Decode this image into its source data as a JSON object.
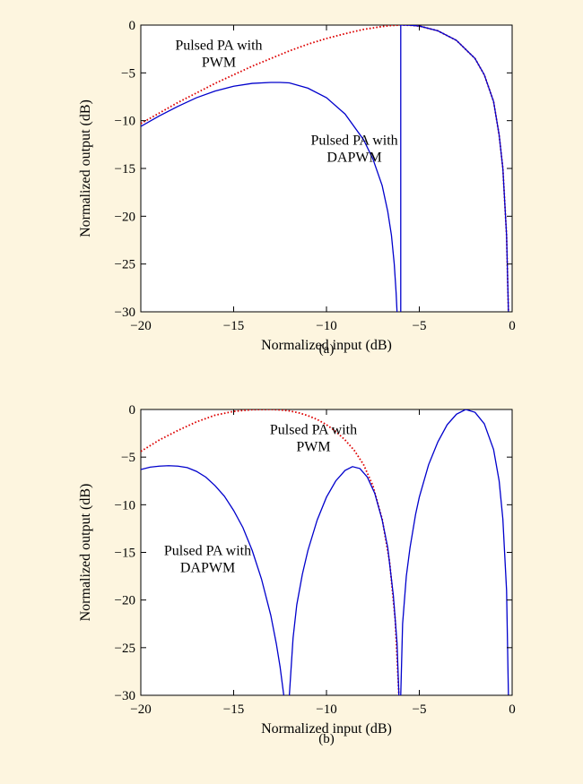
{
  "chart_data": [
    {
      "type": "line",
      "panel_label": "(a)",
      "xlabel": "Normalized input (dB)",
      "ylabel": "Normalized output (dB)",
      "xlim": [
        -20,
        0
      ],
      "ylim": [
        -30,
        0
      ],
      "xticks": [
        -20,
        -15,
        -10,
        -5,
        0
      ],
      "yticks": [
        0,
        -5,
        -10,
        -15,
        -20,
        -25,
        -30
      ],
      "xtick_labels": [
        "−20",
        "−15",
        "−10",
        "−5",
        "0"
      ],
      "ytick_labels": [
        "0",
        "−5",
        "−10",
        "−15",
        "−20",
        "−25",
        "−30"
      ],
      "grid": false,
      "series": [
        {
          "name": "Pulsed PA with PWM",
          "color": "#dd0000",
          "style": "dotted",
          "x": [
            -20,
            -19,
            -18,
            -17,
            -16,
            -15,
            -14,
            -13,
            -12,
            -11,
            -10,
            -9,
            -8,
            -7,
            -6.5,
            -6,
            -5.5,
            -5,
            -4,
            -3,
            -2,
            -1.5,
            -1,
            -0.7,
            -0.5,
            -0.3,
            -0.2
          ],
          "y": [
            -10.3,
            -9.2,
            -8.1,
            -7.1,
            -6.1,
            -5.2,
            -4.3,
            -3.5,
            -2.7,
            -2.0,
            -1.4,
            -0.9,
            -0.45,
            -0.15,
            -0.04,
            0,
            -0.02,
            -0.1,
            -0.6,
            -1.6,
            -3.5,
            -5.2,
            -8.0,
            -11.5,
            -15.0,
            -22.0,
            -30.0
          ]
        },
        {
          "name": "Pulsed PA with DAPWM",
          "color": "#0000cc",
          "style": "solid",
          "segments": [
            {
              "x": [
                -20,
                -19,
                -18,
                -17,
                -16,
                -15,
                -14,
                -13,
                -12.5,
                -12,
                -11,
                -10,
                -9,
                -8,
                -7.5,
                -7,
                -6.7,
                -6.5,
                -6.35,
                -6.25,
                -6.2
              ],
              "y": [
                -10.6,
                -9.5,
                -8.5,
                -7.6,
                -6.9,
                -6.4,
                -6.1,
                -6.0,
                -6.0,
                -6.05,
                -6.6,
                -7.6,
                -9.3,
                -12.0,
                -14.0,
                -16.8,
                -19.5,
                -22.0,
                -25.0,
                -28.0,
                -30.0
              ]
            },
            {
              "x": [
                -6.0,
                -6.0
              ],
              "y": [
                -30.0,
                0
              ]
            },
            {
              "x": [
                -6.0,
                -5.5,
                -5,
                -4,
                -3,
                -2,
                -1.5,
                -1,
                -0.7,
                -0.5,
                -0.3,
                -0.2
              ],
              "y": [
                0,
                -0.02,
                -0.1,
                -0.6,
                -1.6,
                -3.5,
                -5.2,
                -8.0,
                -11.5,
                -15.0,
                -22.0,
                -30.0
              ]
            }
          ]
        }
      ],
      "annotations": [
        {
          "lines": [
            "Pulsed PA with",
            "PWM"
          ],
          "x": -15.8,
          "y": -2.6,
          "anchor": "middle"
        },
        {
          "lines": [
            "Pulsed PA with",
            "DAPWM"
          ],
          "x": -8.5,
          "y": -12.5,
          "anchor": "middle"
        }
      ]
    },
    {
      "type": "line",
      "panel_label": "(b)",
      "xlabel": "Normalized input (dB)",
      "ylabel": "Normalized output (dB)",
      "xlim": [
        -20,
        0
      ],
      "ylim": [
        -30,
        0
      ],
      "xticks": [
        -20,
        -15,
        -10,
        -5,
        0
      ],
      "yticks": [
        0,
        -5,
        -10,
        -15,
        -20,
        -25,
        -30
      ],
      "xtick_labels": [
        "−20",
        "−15",
        "−10",
        "−5",
        "0"
      ],
      "ytick_labels": [
        "0",
        "−5",
        "−10",
        "−15",
        "−20",
        "−25",
        "−30"
      ],
      "grid": false,
      "series": [
        {
          "name": "Pulsed PA with PWM",
          "color": "#dd0000",
          "style": "dotted",
          "x": [
            -20,
            -19,
            -18,
            -17,
            -16,
            -15,
            -14,
            -13,
            -12.5,
            -12,
            -11.5,
            -11,
            -10.5,
            -10,
            -9.5,
            -9,
            -8.5,
            -8,
            -7.5,
            -7,
            -6.6,
            -6.3,
            -6.1
          ],
          "y": [
            -4.4,
            -3.2,
            -2.2,
            -1.3,
            -0.6,
            -0.2,
            -0.02,
            0,
            -0.04,
            -0.15,
            -0.35,
            -0.65,
            -1.05,
            -1.6,
            -2.3,
            -3.2,
            -4.3,
            -5.8,
            -8.0,
            -11.5,
            -16.0,
            -22.0,
            -30.0
          ]
        },
        {
          "name": "Pulsed PA with DAPWM",
          "color": "#0000cc",
          "style": "solid",
          "segments": [
            {
              "x": [
                -20,
                -19.5,
                -19,
                -18.5,
                -18,
                -17.5,
                -17,
                -16.5,
                -16,
                -15.5,
                -15,
                -14.5,
                -14,
                -13.5,
                -13,
                -12.7,
                -12.5,
                -12.3
              ],
              "y": [
                -6.3,
                -6.05,
                -5.95,
                -5.9,
                -5.95,
                -6.1,
                -6.5,
                -7.1,
                -8.0,
                -9.1,
                -10.6,
                -12.4,
                -14.8,
                -17.8,
                -21.6,
                -24.6,
                -27.0,
                -30.0
              ]
            },
            {
              "x": [
                -12.0,
                -11.8,
                -11.6,
                -11.3,
                -11,
                -10.5,
                -10,
                -9.5,
                -9,
                -8.6,
                -8.2,
                -7.8,
                -7.4,
                -7,
                -6.7,
                -6.4,
                -6.2,
                -6.1
              ],
              "y": [
                -30.0,
                -24.0,
                -20.5,
                -17.3,
                -14.8,
                -11.6,
                -9.2,
                -7.5,
                -6.4,
                -6.0,
                -6.2,
                -7.1,
                -8.8,
                -11.6,
                -14.5,
                -19.5,
                -24.5,
                -30.0
              ]
            },
            {
              "x": [
                -6.0,
                -5.9,
                -5.7,
                -5.5,
                -5.2,
                -5,
                -4.5,
                -4,
                -3.5,
                -3,
                -2.5,
                -2,
                -1.5,
                -1,
                -0.7,
                -0.5,
                -0.3,
                -0.2
              ],
              "y": [
                -30.0,
                -22.5,
                -17.5,
                -14.5,
                -11.0,
                -9.2,
                -5.8,
                -3.4,
                -1.6,
                -0.5,
                0,
                -0.3,
                -1.5,
                -4.2,
                -7.5,
                -11.5,
                -19.0,
                -30.0
              ]
            }
          ]
        }
      ],
      "annotations": [
        {
          "lines": [
            "Pulsed PA with",
            "PWM"
          ],
          "x": -10.7,
          "y": -2.6,
          "anchor": "middle"
        },
        {
          "lines": [
            "Pulsed PA with",
            "DAPWM"
          ],
          "x": -16.4,
          "y": -15.3,
          "anchor": "middle"
        }
      ]
    }
  ]
}
